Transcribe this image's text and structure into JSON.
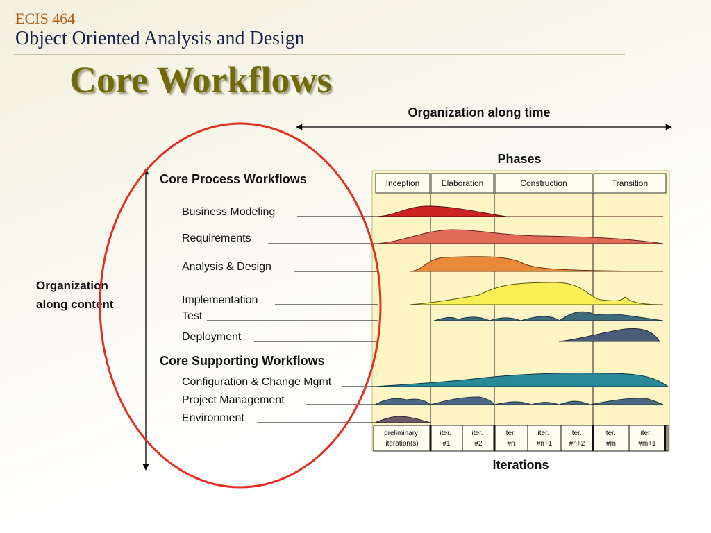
{
  "header": {
    "course_code": "ECIS 464",
    "course_title": "Object Oriented Analysis and Design"
  },
  "slide": {
    "title": "Core Workflows"
  },
  "diagram": {
    "time_axis_label": "Organization along time",
    "content_axis_label": [
      "Organization",
      "along content"
    ],
    "phases_label": "Phases",
    "phases": [
      "Inception",
      "Elaboration",
      "Construction",
      "Transition"
    ],
    "process_group_label": "Core Process Workflows",
    "supporting_group_label": "Core Supporting Workflows",
    "process_workflows": [
      "Business Modeling",
      "Requirements",
      "Analysis & Design",
      "Implementation",
      "Test",
      "Deployment"
    ],
    "supporting_workflows": [
      "Configuration & Change Mgmt",
      "Project Management",
      "Environment"
    ],
    "iterations": [
      [
        "preliminary",
        "iteration(s)"
      ],
      [
        "iter.",
        "#1"
      ],
      [
        "iter.",
        "#2"
      ],
      [
        "iter.",
        "#n"
      ],
      [
        "iter.",
        "#n+1"
      ],
      [
        "iter.",
        "#n+2"
      ],
      [
        "iter.",
        "#m"
      ],
      [
        "iter.",
        "#m+1"
      ]
    ],
    "iterations_label": "Iterations",
    "colors": {
      "chart_background": "#fdf6c4",
      "business_modeling": "#cc2222",
      "requirements": "#e06c58",
      "analysis_design": "#e8893a",
      "implementation": "#f7ef55",
      "test": "#3e6c7c",
      "deployment": "#4a5c7c",
      "configuration": "#2a8a9a",
      "project_management": "#4a6a84",
      "environment": "#6a5a6a",
      "highlight_circle": "#e03020"
    }
  }
}
